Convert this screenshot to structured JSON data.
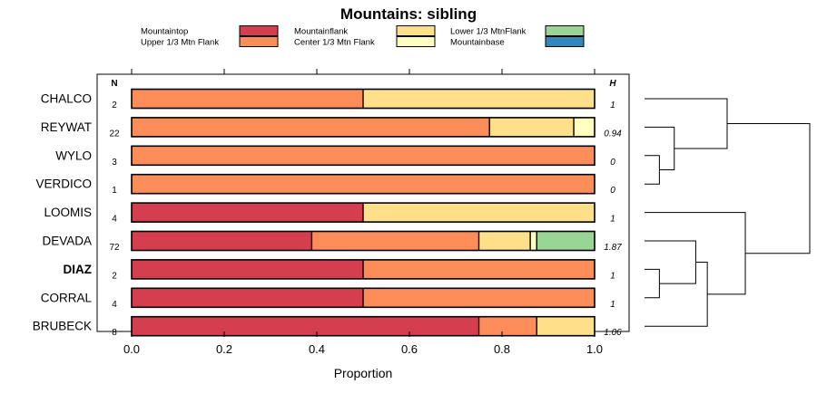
{
  "chart_data": {
    "type": "bar",
    "orientation": "horizontal",
    "stacked": true,
    "title": "Mountains: sibling",
    "xlabel": "Proportion",
    "ylabel": "",
    "xlim": [
      -0.07,
      1.07
    ],
    "x_ticks": [
      0.0,
      0.2,
      0.4,
      0.6,
      0.8,
      1.0
    ],
    "x_tick_labels": [
      "0.0",
      "0.2",
      "0.4",
      "0.6",
      "0.8",
      "1.0"
    ],
    "n_header": "N",
    "h_header": "H",
    "legend": [
      {
        "label": "Mountaintop",
        "color": "#D53E4F"
      },
      {
        "label": "Upper 1/3 Mtn Flank",
        "color": "#FC8D59"
      },
      {
        "label": "Mountainflank",
        "color": "#FEE08B"
      },
      {
        "label": "Center 1/3 Mtn Flank",
        "color": "#FFFFBF"
      },
      {
        "label": "Lower 1/3 MtnFlank",
        "color": "#99D594"
      },
      {
        "label": "Mountainbase",
        "color": "#3288BD"
      }
    ],
    "categories": [
      {
        "name": "CHALCO",
        "bold": false,
        "n": "2",
        "h": "1",
        "segments": [
          {
            "cls": "Upper 1/3 Mtn Flank",
            "value": 0.5
          },
          {
            "cls": "Mountainflank",
            "value": 0.5
          }
        ]
      },
      {
        "name": "REYWAT",
        "bold": false,
        "n": "22",
        "h": "0.94",
        "segments": [
          {
            "cls": "Upper 1/3 Mtn Flank",
            "value": 0.773
          },
          {
            "cls": "Mountainflank",
            "value": 0.182
          },
          {
            "cls": "Center 1/3 Mtn Flank",
            "value": 0.045
          }
        ]
      },
      {
        "name": "WYLO",
        "bold": false,
        "n": "3",
        "h": "0",
        "segments": [
          {
            "cls": "Upper 1/3 Mtn Flank",
            "value": 1.0
          }
        ]
      },
      {
        "name": "VERDICO",
        "bold": false,
        "n": "1",
        "h": "0",
        "segments": [
          {
            "cls": "Upper 1/3 Mtn Flank",
            "value": 1.0
          }
        ]
      },
      {
        "name": "LOOMIS",
        "bold": false,
        "n": "4",
        "h": "1",
        "segments": [
          {
            "cls": "Mountaintop",
            "value": 0.5
          },
          {
            "cls": "Mountainflank",
            "value": 0.5
          }
        ]
      },
      {
        "name": "DEVADA",
        "bold": false,
        "n": "72",
        "h": "1.87",
        "segments": [
          {
            "cls": "Mountaintop",
            "value": 0.389
          },
          {
            "cls": "Upper 1/3 Mtn Flank",
            "value": 0.361
          },
          {
            "cls": "Mountainflank",
            "value": 0.111
          },
          {
            "cls": "Center 1/3 Mtn Flank",
            "value": 0.014
          },
          {
            "cls": "Lower 1/3 MtnFlank",
            "value": 0.125
          }
        ]
      },
      {
        "name": "DIAZ",
        "bold": true,
        "n": "2",
        "h": "1",
        "segments": [
          {
            "cls": "Mountaintop",
            "value": 0.5
          },
          {
            "cls": "Upper 1/3 Mtn Flank",
            "value": 0.5
          }
        ]
      },
      {
        "name": "CORRAL",
        "bold": false,
        "n": "4",
        "h": "1",
        "segments": [
          {
            "cls": "Mountaintop",
            "value": 0.5
          },
          {
            "cls": "Upper 1/3 Mtn Flank",
            "value": 0.5
          }
        ]
      },
      {
        "name": "BRUBECK",
        "bold": false,
        "n": "8",
        "h": "1.06",
        "segments": [
          {
            "cls": "Mountaintop",
            "value": 0.75
          },
          {
            "cls": "Upper 1/3 Mtn Flank",
            "value": 0.125
          },
          {
            "cls": "Mountainflank",
            "value": 0.125
          }
        ]
      }
    ],
    "dendrogram": {
      "merges": [
        {
          "a": "WYLO",
          "b": "VERDICO",
          "height": 0.0
        },
        {
          "a": "DIAZ",
          "b": "CORRAL",
          "height": 0.0
        },
        {
          "a": "m0",
          "b": "REYWAT",
          "height": 0.18
        },
        {
          "a": "m1",
          "b": "DEVADA",
          "height": 0.31
        },
        {
          "a": "m3",
          "b": "BRUBECK",
          "height": 0.38
        },
        {
          "a": "m2",
          "b": "CHALCO",
          "height": 0.5
        },
        {
          "a": "m4",
          "b": "LOOMIS",
          "height": 0.61
        },
        {
          "a": "m5",
          "b": "m6",
          "height": 1.0
        }
      ]
    }
  }
}
